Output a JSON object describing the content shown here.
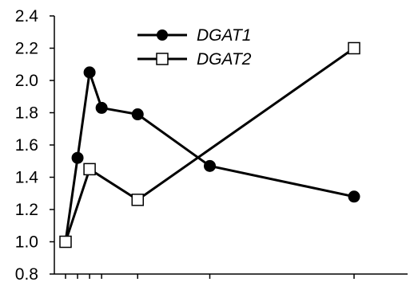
{
  "chart_data": {
    "type": "line",
    "title": "",
    "xlabel": "",
    "ylabel": "",
    "ylim": [
      0.8,
      2.4
    ],
    "xlim": [
      0,
      24
    ],
    "yticks": [
      0.8,
      1.0,
      1.2,
      1.4,
      1.6,
      1.8,
      2.0,
      2.2,
      2.4
    ],
    "ytick_labels": [
      "0.8",
      "1.0",
      "1.2",
      "1.4",
      "1.6",
      "1.8",
      "2.0",
      "2.2",
      "2.4"
    ],
    "xticks": [
      0,
      1,
      2,
      3,
      6,
      12,
      24
    ],
    "xtick_labels_shown": false,
    "grid": false,
    "legend_position": "top-center",
    "series": [
      {
        "name": "DGAT1",
        "marker": "filled-circle",
        "color": "#000000",
        "x": [
          0,
          1,
          2,
          3,
          6,
          12,
          24
        ],
        "values": [
          1.0,
          1.52,
          2.05,
          1.83,
          1.79,
          1.47,
          1.28
        ]
      },
      {
        "name": "DGAT2",
        "marker": "open-square",
        "color": "#000000",
        "x": [
          0,
          2,
          6,
          24
        ],
        "values": [
          1.0,
          1.45,
          1.26,
          2.2
        ]
      }
    ]
  }
}
